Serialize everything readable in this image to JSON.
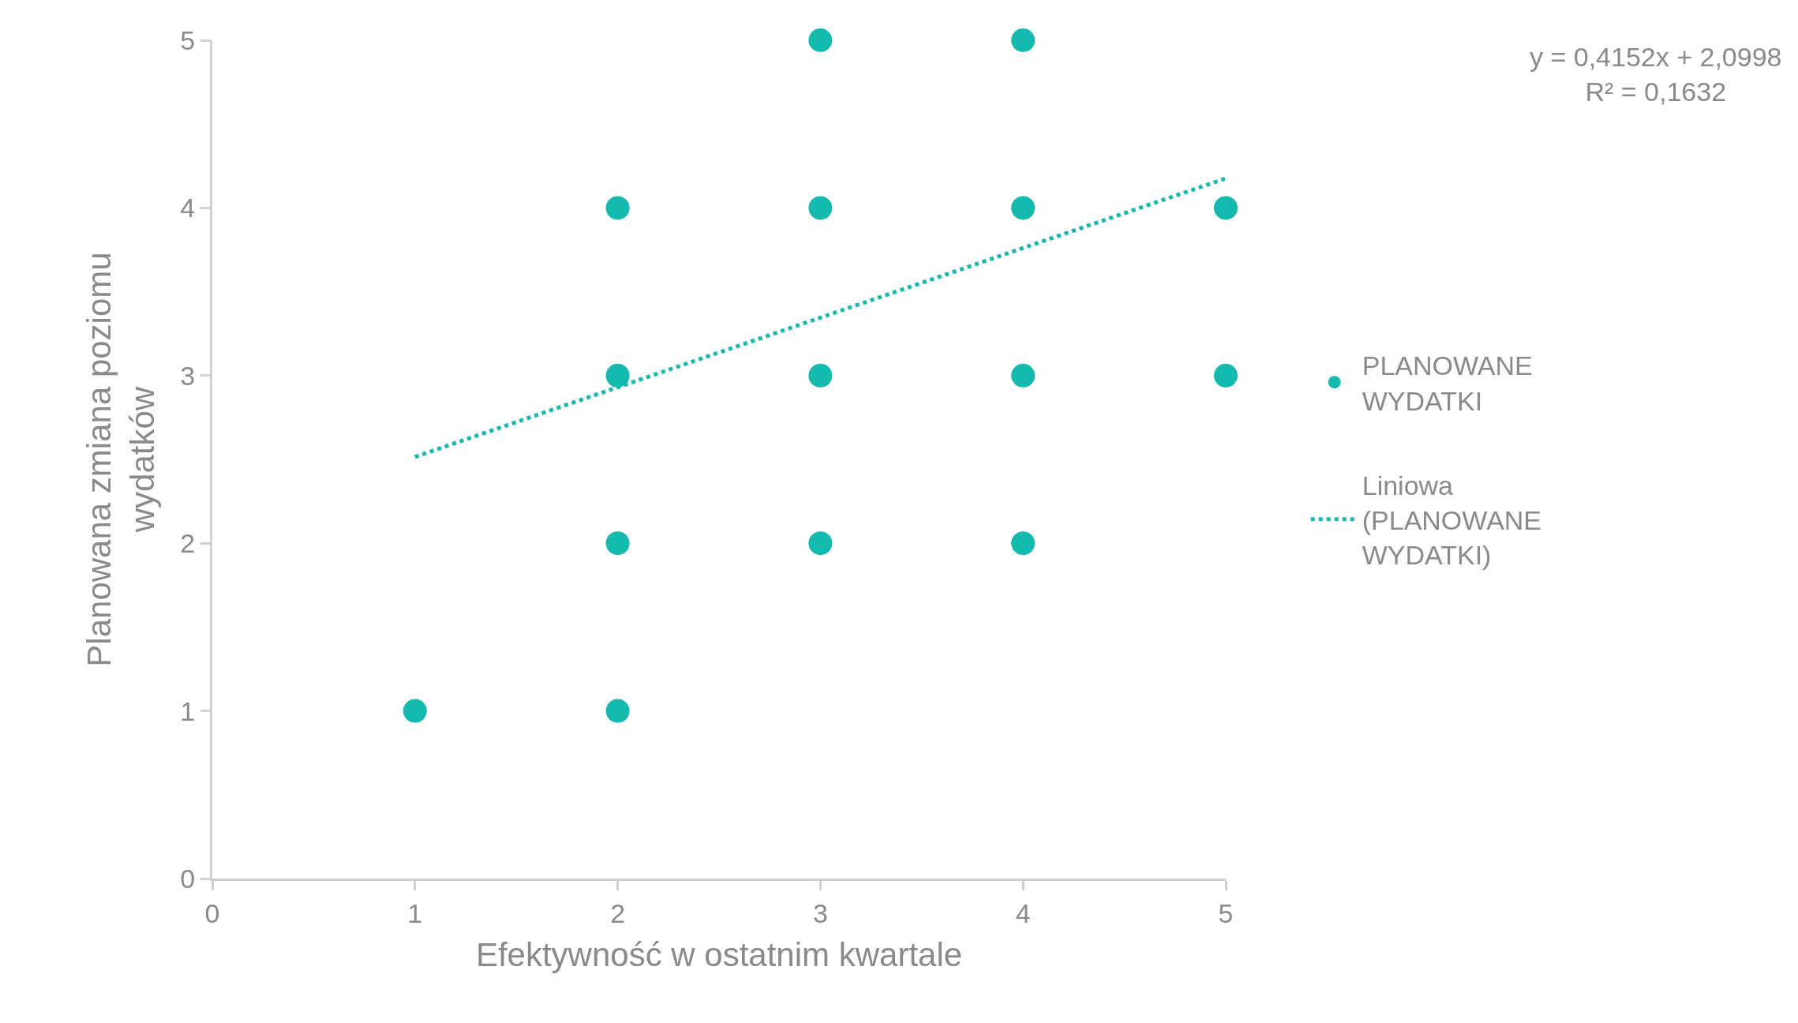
{
  "chart_data": {
    "type": "scatter",
    "xlabel": "Efektywność w ostatnim kwartale",
    "ylabel": "Planowana zmiana poziomu wydatków",
    "xlim": [
      0,
      5
    ],
    "ylim": [
      0,
      5
    ],
    "xticks": [
      0,
      1,
      2,
      3,
      4,
      5
    ],
    "yticks": [
      0,
      1,
      2,
      3,
      4,
      5
    ],
    "legend": "right",
    "annotations": [
      "y = 0,4152x + 2,0998\nR² = 0,1632"
    ],
    "series": [
      {
        "name": "PLANOWANE WYDATKI",
        "marker": "circle",
        "color": "#13bbaf",
        "x": [
          1,
          2,
          2,
          2,
          2,
          3,
          3,
          3,
          3,
          4,
          4,
          4,
          4,
          5,
          5
        ],
        "values": [
          1,
          1,
          2,
          3,
          4,
          2,
          3,
          4,
          5,
          2,
          3,
          4,
          5,
          3,
          4
        ]
      },
      {
        "name": "Liniowa (PLANOWANE WYDATKI)",
        "type": "line",
        "marker": "none",
        "line_style": "dotted",
        "color": "#13bbaf",
        "x": [
          1,
          5
        ],
        "values": [
          2.515,
          4.176
        ]
      }
    ]
  }
}
